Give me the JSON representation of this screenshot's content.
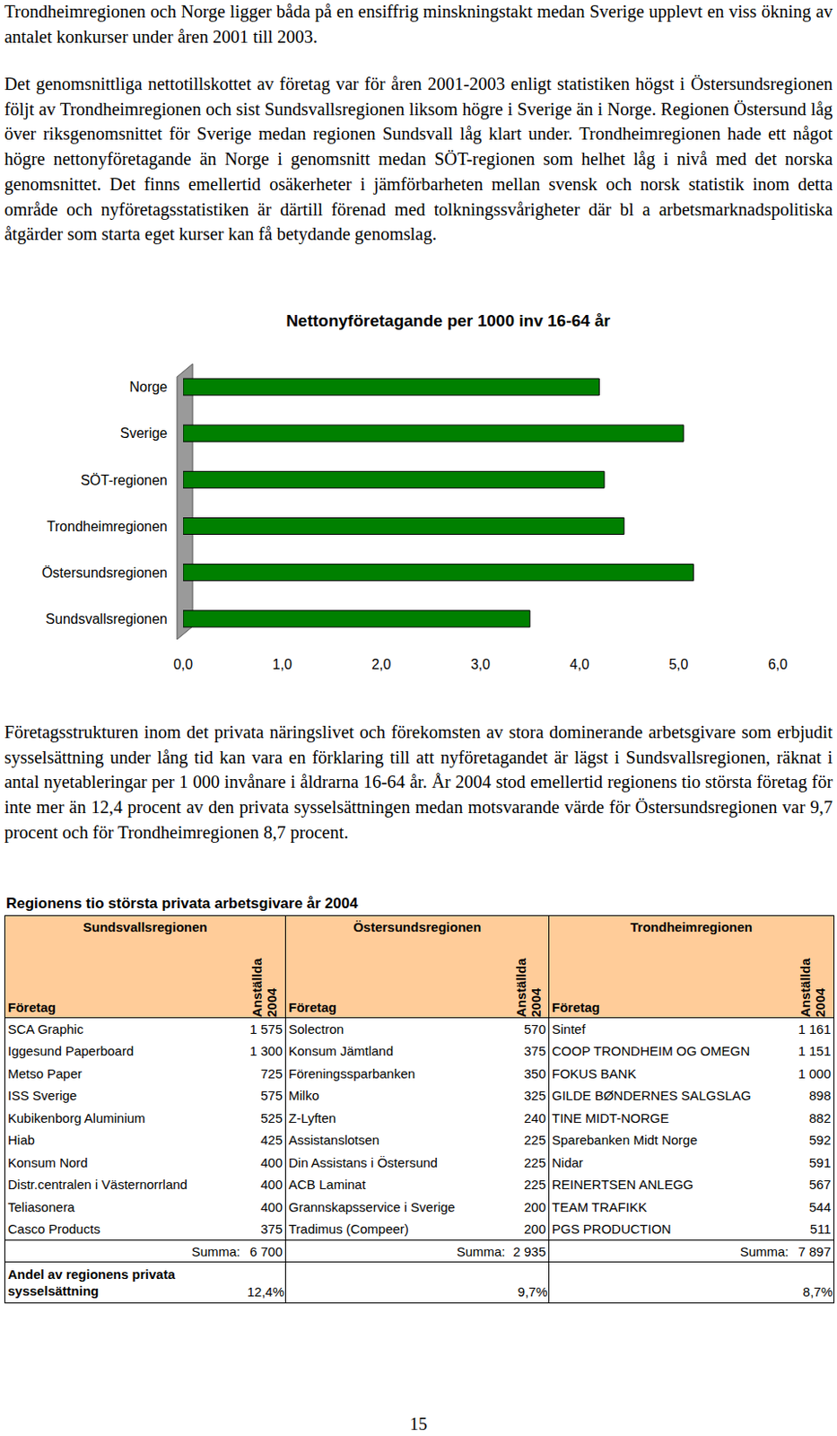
{
  "paragraphs_top": [
    "Trondheimregionen och Norge ligger båda på en ensiffrig minskningstakt medan Sverige upplevt en viss ökning av antalet konkurser under åren 2001 till 2003.",
    "Det genomsnittliga nettotillskottet av företag var för åren 2001-2003 enligt statistiken högst i Östersundsregionen följt av Trondheimregionen och sist Sundsvallsregionen liksom högre i Sverige än i Norge. Regionen Östersund låg över riksgenomsnittet för Sverige medan regionen Sundsvall låg klart under. Trondheimregionen hade ett något högre nettonyföretagande än Norge i genomsnitt medan SÖT-regionen som helhet låg i nivå med det norska genomsnittet. Det finns emellertid osäkerheter i jämförbarheten mellan svensk och norsk statistik inom detta område och nyföretagsstatistiken är därtill förenad med tolkningssvårigheter där bl a arbetsmarknadspolitiska åtgärder som starta eget kurser kan få betydande genomslag."
  ],
  "chart_data": {
    "type": "bar",
    "orientation": "horizontal",
    "title": "Nettonyföretagande per 1000 inv 16-64 år",
    "categories": [
      "Norge",
      "Sverige",
      "SÖT-regionen",
      "Trondheimregionen",
      "Östersundsregionen",
      "Sundsvallsregionen"
    ],
    "values": [
      4.2,
      5.05,
      4.25,
      4.45,
      5.15,
      3.5
    ],
    "color": "#008000",
    "xlim": [
      0,
      6
    ],
    "xticks": [
      {
        "value": 0,
        "label": "0,0"
      },
      {
        "value": 1,
        "label": "1,0"
      },
      {
        "value": 2,
        "label": "2,0"
      },
      {
        "value": 3,
        "label": "3,0"
      },
      {
        "value": 4,
        "label": "4,0"
      },
      {
        "value": 5,
        "label": "5,0"
      },
      {
        "value": 6,
        "label": "6,0"
      }
    ],
    "grid": false
  },
  "paragraphs_bottom": [
    "Företagsstrukturen inom det privata näringslivet och förekomsten av stora dominerande arbetsgivare som erbjudit sysselsättning under lång tid kan vara en förklaring till att nyföretagandet är lägst i Sundsvallsregionen, räknat i antal nyetableringar per 1 000 invånare i åldrarna 16-64 år. År 2004 stod emellertid regionens tio största företag för inte mer än 12,4 procent av den privata sysselsättningen medan motsvarande värde för Östersundsregionen var 9,7 procent och för Trondheimregionen 8,7 procent."
  ],
  "table": {
    "title": "Regionens tio största privata arbetsgivare år 2004",
    "column_company": "Företag",
    "column_employees": [
      "Anställda",
      "2004"
    ],
    "sum_label": "Summa:",
    "share_label": "Andel av regionens privata sysselsättning",
    "groups": [
      {
        "name": "Sundsvallsregionen",
        "rows": [
          [
            "SCA Graphic",
            "1 575"
          ],
          [
            "Iggesund Paperboard",
            "1 300"
          ],
          [
            "Metso Paper",
            "725"
          ],
          [
            "ISS Sverige",
            "575"
          ],
          [
            "Kubikenborg Aluminium",
            "525"
          ],
          [
            "Hiab",
            "425"
          ],
          [
            "Konsum Nord",
            "400"
          ],
          [
            "Distr.centralen i Västernorrland",
            "400"
          ],
          [
            "Teliasonera",
            "400"
          ],
          [
            "Casco Products",
            "375"
          ]
        ],
        "sum": "6 700",
        "share": "12,4%"
      },
      {
        "name": "Östersundsregionen",
        "rows": [
          [
            "Solectron",
            "570"
          ],
          [
            "Konsum Jämtland",
            "375"
          ],
          [
            "Föreningssparbanken",
            "350"
          ],
          [
            "Milko",
            "325"
          ],
          [
            "Z-Lyften",
            "240"
          ],
          [
            "Assistanslotsen",
            "225"
          ],
          [
            "Din Assistans i Östersund",
            "225"
          ],
          [
            "ACB Laminat",
            "225"
          ],
          [
            "Grannskapsservice i Sverige",
            "200"
          ],
          [
            "Tradimus (Compeer)",
            "200"
          ]
        ],
        "sum": "2 935",
        "share": "9,7%"
      },
      {
        "name": "Trondheimregionen",
        "rows": [
          [
            "Sintef",
            "1 161"
          ],
          [
            "COOP TRONDHEIM OG OMEGN",
            "1 151"
          ],
          [
            "FOKUS BANK",
            "1 000"
          ],
          [
            "GILDE BØNDERNES SALGSLAG",
            "898"
          ],
          [
            "TINE MIDT-NORGE",
            "882"
          ],
          [
            "Sparebanken Midt Norge",
            "592"
          ],
          [
            "Nidar",
            "591"
          ],
          [
            "REINERTSEN ANLEGG",
            "567"
          ],
          [
            "TEAM TRAFIKK",
            "544"
          ],
          [
            "PGS PRODUCTION",
            "511"
          ]
        ],
        "sum": "7 897",
        "share": "8,7%"
      }
    ]
  },
  "page_number": "15"
}
